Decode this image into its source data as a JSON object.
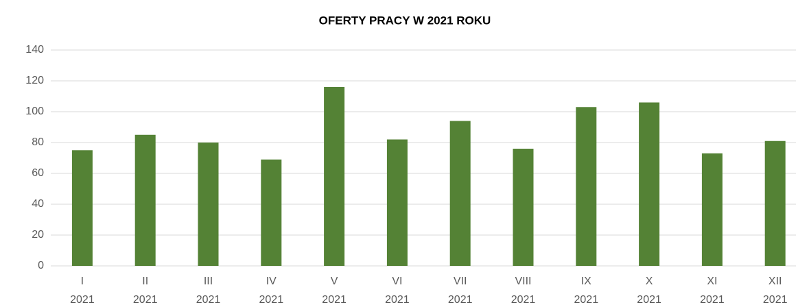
{
  "chart_data": {
    "type": "bar",
    "title": "OFERTY PRACY W 2021 ROKU",
    "categories": [
      [
        "I",
        "2021"
      ],
      [
        "II",
        "2021"
      ],
      [
        "III",
        "2021"
      ],
      [
        "IV",
        "2021"
      ],
      [
        "V",
        "2021"
      ],
      [
        "VI",
        "2021"
      ],
      [
        "VII",
        "2021"
      ],
      [
        "VIII",
        "2021"
      ],
      [
        "IX",
        "2021"
      ],
      [
        "X",
        "2021"
      ],
      [
        "XI",
        "2021"
      ],
      [
        "XII",
        "2021"
      ]
    ],
    "values": [
      75,
      85,
      80,
      69,
      116,
      82,
      94,
      76,
      103,
      106,
      73,
      81
    ],
    "color": "#548235",
    "ylim": [
      0,
      140
    ],
    "yticks": [
      0,
      20,
      40,
      60,
      80,
      100,
      120,
      140
    ],
    "grid": true
  }
}
